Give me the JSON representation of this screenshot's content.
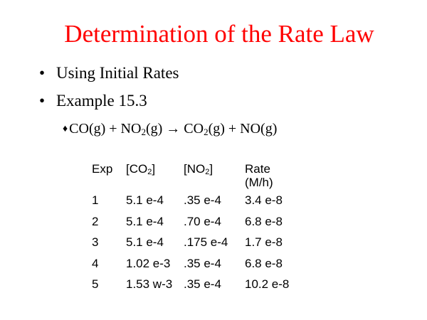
{
  "slide": {
    "title": "Determination of the Rate Law",
    "bullets": [
      "Using Initial Rates",
      "Example 15.3"
    ],
    "bullet_symbol": "•",
    "reaction": {
      "symbol": "♦",
      "r1": "CO(g) + NO",
      "r1_sub": "2",
      "r1_tail": "(g) ",
      "arrow": "→",
      "p1": " CO",
      "p1_sub": "2",
      "p1_tail": "(g) + NO(g)"
    },
    "table": {
      "headers": {
        "exp": "Exp",
        "co2_open": "[CO",
        "co2_sub": "2",
        "co2_close": "]",
        "no2_open": "[NO",
        "no2_sub": "2",
        "no2_close": "]",
        "rate_line1": "Rate",
        "rate_line2": "(M/h)"
      },
      "rows": [
        {
          "exp": "1",
          "co2": "5.1 e-4",
          "no2": ".35 e-4",
          "rate": "3.4 e-8"
        },
        {
          "exp": "2",
          "co2": "5.1 e-4",
          "no2": ".70 e-4",
          "rate": "6.8 e-8"
        },
        {
          "exp": "3",
          "co2": "5.1 e-4",
          "no2": ".175 e-4",
          "rate": "1.7 e-8"
        },
        {
          "exp": "4",
          "co2": "1.02 e-3",
          "no2": ".35 e-4",
          "rate": "6.8 e-8"
        },
        {
          "exp": "5",
          "co2": "1.53 w-3",
          "no2": ".35 e-4",
          "rate": "10.2 e-8"
        }
      ]
    }
  }
}
